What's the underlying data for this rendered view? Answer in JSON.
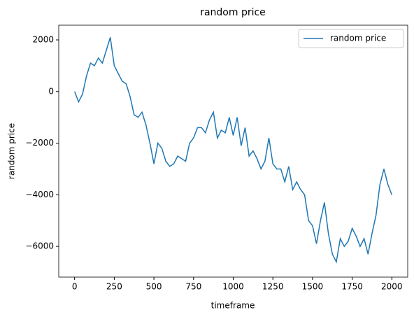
{
  "chart_data": {
    "type": "line",
    "title": "random price",
    "xlabel": "timeframe",
    "ylabel": "random price",
    "x": [
      0,
      25,
      50,
      75,
      100,
      125,
      150,
      175,
      200,
      225,
      250,
      275,
      300,
      325,
      350,
      375,
      400,
      425,
      450,
      475,
      500,
      525,
      550,
      575,
      600,
      625,
      650,
      675,
      700,
      725,
      750,
      775,
      800,
      825,
      850,
      875,
      900,
      925,
      950,
      975,
      1000,
      1025,
      1050,
      1075,
      1100,
      1125,
      1150,
      1175,
      1200,
      1225,
      1250,
      1275,
      1300,
      1325,
      1350,
      1375,
      1400,
      1425,
      1450,
      1475,
      1500,
      1525,
      1550,
      1575,
      1600,
      1625,
      1650,
      1675,
      1700,
      1725,
      1750,
      1775,
      1800,
      1825,
      1850,
      1875,
      1900,
      1925,
      1950,
      1975,
      2000
    ],
    "series": [
      {
        "name": "random price",
        "color": "#1f77b4",
        "values": [
          0,
          -400,
          -100,
          600,
          1100,
          1000,
          1300,
          1100,
          1600,
          2100,
          1000,
          700,
          400,
          300,
          -200,
          -900,
          -1000,
          -800,
          -1300,
          -2000,
          -2800,
          -2000,
          -2200,
          -2700,
          -2900,
          -2800,
          -2500,
          -2600,
          -2700,
          -2000,
          -1800,
          -1400,
          -1400,
          -1600,
          -1100,
          -800,
          -1800,
          -1500,
          -1600,
          -1000,
          -1700,
          -1000,
          -2100,
          -1400,
          -2500,
          -2300,
          -2600,
          -3000,
          -2700,
          -1800,
          -2800,
          -3000,
          -3000,
          -3500,
          -2900,
          -3800,
          -3500,
          -3800,
          -4000,
          -5000,
          -5200,
          -5900,
          -5000,
          -4300,
          -5500,
          -6300,
          -6600,
          -5700,
          -6000,
          -5800,
          -5300,
          -5600,
          -6000,
          -5700,
          -6300,
          -5500,
          -4800,
          -3600,
          -3000,
          -3600,
          -4000
        ]
      }
    ],
    "xlim": [
      -100,
      2100
    ],
    "xticks": [
      0,
      250,
      500,
      750,
      1000,
      1250,
      1500,
      1750,
      2000
    ],
    "ylim": [
      -7190,
      2570
    ],
    "yticks": [
      {
        "value": -6000,
        "label": "−6000"
      },
      {
        "value": -4000,
        "label": "−4000"
      },
      {
        "value": -2000,
        "label": "−2000"
      },
      0,
      2000
    ],
    "legend": "upper right"
  }
}
